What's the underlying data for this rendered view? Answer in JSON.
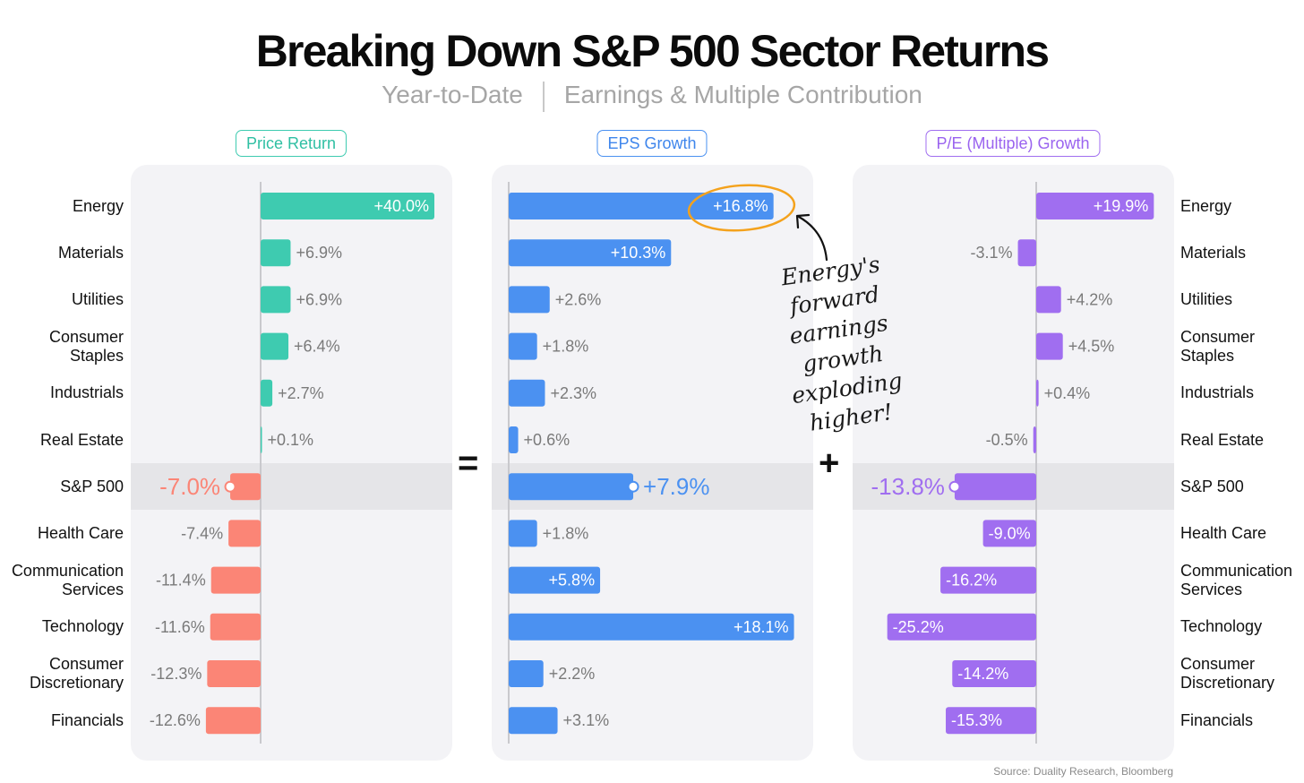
{
  "title": "Breaking Down S&P 500 Sector Returns",
  "subtitle": {
    "left": "Year-to-Date",
    "right": "Earnings & Multiple Contribution"
  },
  "operators": {
    "equals": "=",
    "plus": "+"
  },
  "annotation": {
    "line1": "Energy's forward",
    "line2": "earnings growth",
    "line3": "exploding higher!"
  },
  "source": "Source: Duality Research, Bloomberg",
  "colors": {
    "price": "#3ecbb0",
    "eps": "#4b91f1",
    "pe": "#a06ef0",
    "negative": "#fb8576",
    "annotation_circle": "#f4a21c"
  },
  "labels_left": [
    [
      "Energy"
    ],
    [
      "Materials"
    ],
    [
      "Utilities"
    ],
    [
      "Consumer",
      "Staples"
    ],
    [
      "Industrials"
    ],
    [
      "Real Estate"
    ],
    [
      "S&P 500"
    ],
    [
      "Health Care"
    ],
    [
      "Communication",
      "Services"
    ],
    [
      "Technology"
    ],
    [
      "Consumer",
      "Discretionary"
    ],
    [
      "Financials"
    ]
  ],
  "labels_right": [
    [
      "Energy"
    ],
    [
      "Materials"
    ],
    [
      "Utilities"
    ],
    [
      "Consumer",
      "Staples"
    ],
    [
      "Industrials"
    ],
    [
      "Real Estate"
    ],
    [
      "S&P 500"
    ],
    [
      "Health Care"
    ],
    [
      "Communication",
      "Services"
    ],
    [
      "Technology"
    ],
    [
      "Consumer",
      "Discretionary"
    ],
    [
      "Financials"
    ]
  ],
  "chart_data": [
    {
      "type": "bar",
      "title": "Price Return",
      "categories": [
        "Energy",
        "Materials",
        "Utilities",
        "Consumer Staples",
        "Industrials",
        "Real Estate",
        "S&P 500",
        "Health Care",
        "Communication Services",
        "Technology",
        "Consumer Discretionary",
        "Financials"
      ],
      "values": [
        40.0,
        6.9,
        6.9,
        6.4,
        2.7,
        0.1,
        -7.0,
        -7.4,
        -11.4,
        -11.6,
        -12.3,
        -12.6
      ],
      "value_labels": [
        "+40.0%",
        "+6.9%",
        "+6.9%",
        "+6.4%",
        "+2.7%",
        "+0.1%",
        "-7.0%",
        "-7.4%",
        "-11.4%",
        "-11.6%",
        "-12.3%",
        "-12.6%"
      ],
      "inside_label": [
        true,
        false,
        false,
        false,
        false,
        false,
        false,
        false,
        false,
        false,
        false,
        false
      ]
    },
    {
      "type": "bar",
      "title": "EPS Growth",
      "categories": [
        "Energy",
        "Materials",
        "Utilities",
        "Consumer Staples",
        "Industrials",
        "Real Estate",
        "S&P 500",
        "Health Care",
        "Communication Services",
        "Technology",
        "Consumer Discretionary",
        "Financials"
      ],
      "values": [
        16.8,
        10.3,
        2.6,
        1.8,
        2.3,
        0.6,
        7.9,
        1.8,
        5.8,
        18.1,
        2.2,
        3.1
      ],
      "value_labels": [
        "+16.8%",
        "+10.3%",
        "+2.6%",
        "+1.8%",
        "+2.3%",
        "+0.6%",
        "+7.9%",
        "+1.8%",
        "+5.8%",
        "+18.1%",
        "+2.2%",
        "+3.1%"
      ],
      "inside_label": [
        true,
        true,
        false,
        false,
        false,
        false,
        false,
        false,
        true,
        true,
        false,
        false
      ]
    },
    {
      "type": "bar",
      "title": "P/E (Multiple) Growth",
      "categories": [
        "Energy",
        "Materials",
        "Utilities",
        "Consumer Staples",
        "Industrials",
        "Real Estate",
        "S&P 500",
        "Health Care",
        "Communication Services",
        "Technology",
        "Consumer Discretionary",
        "Financials"
      ],
      "values": [
        19.9,
        -3.1,
        4.2,
        4.5,
        0.4,
        -0.5,
        -13.8,
        -9.0,
        -16.2,
        -25.2,
        -14.2,
        -15.3
      ],
      "value_labels": [
        "+19.9%",
        "-3.1%",
        "+4.2%",
        "+4.5%",
        "+0.4%",
        "-0.5%",
        "-13.8%",
        "-9.0%",
        "-16.2%",
        "-25.2%",
        "-14.2%",
        "-15.3%"
      ],
      "inside_label": [
        true,
        false,
        false,
        false,
        false,
        false,
        false,
        true,
        true,
        true,
        true,
        true
      ]
    }
  ]
}
